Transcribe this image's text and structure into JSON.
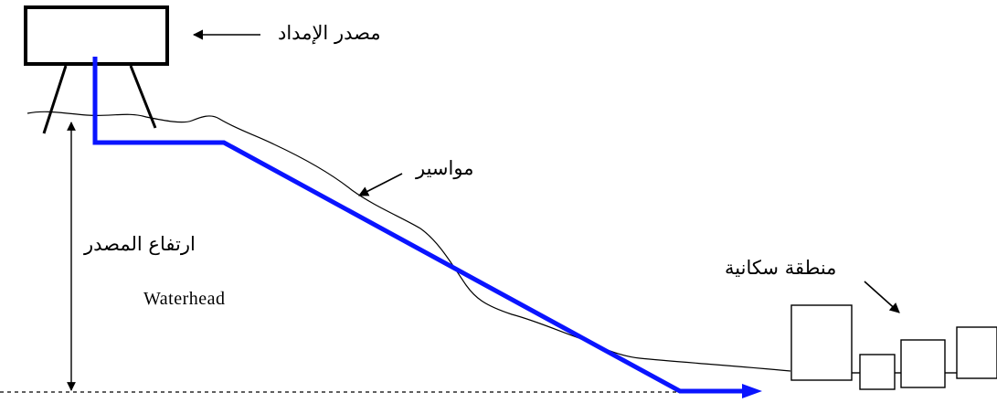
{
  "labels": {
    "supply_source": "مصدر الإمداد",
    "pipes": "مواسير",
    "source_height": "ارتفاع المصدر",
    "waterhead": "Waterhead",
    "residential_area": "منطقة سكانية"
  },
  "colors": {
    "pipe": "#0a14ff",
    "ink": "#000000"
  }
}
